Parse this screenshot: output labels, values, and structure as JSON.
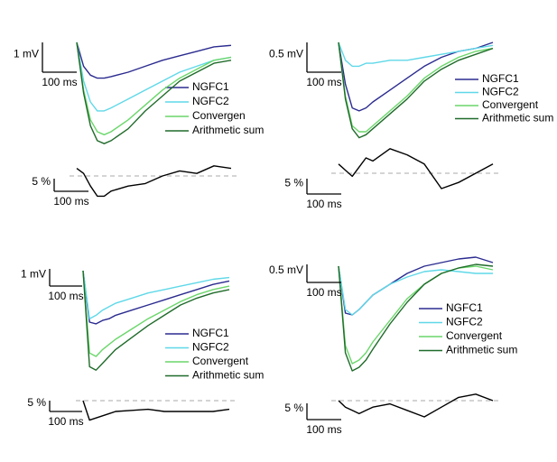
{
  "chart_data": [
    {
      "type": "line",
      "x": [
        0,
        20,
        40,
        60,
        80,
        100,
        150,
        200,
        250,
        300,
        350,
        400,
        450
      ],
      "series": [
        {
          "name": "NGFC1",
          "color": "#2b2b90",
          "values": [
            0,
            -0.8,
            -1.1,
            -1.2,
            -1.2,
            -1.15,
            -1.0,
            -0.8,
            -0.6,
            -0.45,
            -0.3,
            -0.15,
            -0.1
          ]
        },
        {
          "name": "NGFC2",
          "color": "#5fd8e8",
          "values": [
            0,
            -1.3,
            -2.0,
            -2.3,
            -2.3,
            -2.2,
            -1.9,
            -1.6,
            -1.3,
            -1.0,
            -0.8,
            -0.6,
            -0.5
          ]
        },
        {
          "name": "Convergen",
          "color": "#6ad66a",
          "values": [
            0,
            -1.6,
            -2.6,
            -3.0,
            -3.1,
            -3.0,
            -2.6,
            -2.1,
            -1.6,
            -1.2,
            -0.9,
            -0.6,
            -0.5
          ]
        },
        {
          "name": "Arithmetic sum",
          "color": "#1f6b2a",
          "values": [
            0,
            -1.7,
            -2.8,
            -3.3,
            -3.4,
            -3.3,
            -2.9,
            -2.3,
            -1.8,
            -1.3,
            -1.0,
            -0.7,
            -0.6
          ]
        }
      ],
      "scale_bars": {
        "y": {
          "value": 1,
          "label": "1 mV"
        },
        "x": {
          "value": 100,
          "label": "100 ms"
        }
      },
      "difference": {
        "values": [
          3,
          1,
          -4,
          -8,
          -8,
          -6,
          -4,
          -3,
          0,
          2,
          1,
          4,
          3
        ],
        "scale_bars": {
          "y": {
            "value": 5,
            "label": "5 %"
          },
          "x": {
            "value": 100,
            "label": "100 ms"
          }
        }
      }
    },
    {
      "type": "line",
      "x": [
        0,
        20,
        40,
        60,
        80,
        100,
        150,
        200,
        250,
        300,
        350,
        400,
        450
      ],
      "series": [
        {
          "name": "NGFC1",
          "color": "#2b2b90",
          "values": [
            0,
            -0.7,
            -1.1,
            -1.15,
            -1.1,
            -1.0,
            -0.8,
            -0.6,
            -0.4,
            -0.25,
            -0.15,
            -0.1,
            0
          ]
        },
        {
          "name": "NGFC2",
          "color": "#5fd8e8",
          "values": [
            0,
            -0.3,
            -0.4,
            -0.4,
            -0.35,
            -0.35,
            -0.3,
            -0.3,
            -0.25,
            -0.2,
            -0.15,
            -0.1,
            -0.05
          ]
        },
        {
          "name": "Convergent",
          "color": "#6ad66a",
          "values": [
            0,
            -0.9,
            -1.4,
            -1.5,
            -1.5,
            -1.4,
            -1.15,
            -0.9,
            -0.6,
            -0.4,
            -0.25,
            -0.15,
            -0.1
          ]
        },
        {
          "name": "Arithmetic sum",
          "color": "#1f6b2a",
          "values": [
            0,
            -0.95,
            -1.45,
            -1.6,
            -1.55,
            -1.45,
            -1.2,
            -0.95,
            -0.65,
            -0.45,
            -0.3,
            -0.2,
            -0.1
          ]
        }
      ],
      "scale_bars": {
        "y": {
          "value": 0.5,
          "label": "0.5 mV"
        },
        "x": {
          "value": 100,
          "label": "100 ms"
        }
      },
      "difference": {
        "values": [
          3,
          1,
          -1,
          2,
          5,
          4,
          8,
          6,
          3,
          -5,
          -3,
          0,
          3
        ],
        "scale_bars": {
          "y": {
            "value": 5,
            "label": "5 %"
          },
          "x": {
            "value": 100,
            "label": "100 ms"
          }
        }
      }
    },
    {
      "type": "line",
      "x": [
        0,
        20,
        40,
        60,
        80,
        100,
        150,
        200,
        250,
        300,
        350,
        400,
        450
      ],
      "series": [
        {
          "name": "NGFC1",
          "color": "#2b2b90",
          "values": [
            0,
            -3.0,
            -3.1,
            -2.9,
            -2.8,
            -2.6,
            -2.3,
            -2.0,
            -1.7,
            -1.4,
            -1.1,
            -0.8,
            -0.6
          ]
        },
        {
          "name": "NGFC2",
          "color": "#5fd8e8",
          "values": [
            0,
            -2.8,
            -2.6,
            -2.3,
            -2.1,
            -1.9,
            -1.6,
            -1.3,
            -1.1,
            -0.9,
            -0.7,
            -0.5,
            -0.4
          ]
        },
        {
          "name": "Convergent",
          "color": "#6ad66a",
          "values": [
            0,
            -4.8,
            -5.0,
            -4.6,
            -4.3,
            -4.0,
            -3.4,
            -2.8,
            -2.3,
            -1.8,
            -1.4,
            -1.1,
            -0.9
          ]
        },
        {
          "name": "Arithmetic sum",
          "color": "#1f6b2a",
          "values": [
            0,
            -5.6,
            -5.8,
            -5.4,
            -5.0,
            -4.6,
            -3.9,
            -3.2,
            -2.6,
            -2.0,
            -1.6,
            -1.3,
            -1.1
          ]
        }
      ],
      "scale_bars": {
        "y": {
          "value": 1,
          "label": "1 mV"
        },
        "x": {
          "value": 100,
          "label": "100 ms"
        }
      },
      "difference": {
        "values": [
          0,
          -9,
          -8,
          -7,
          -6,
          -5,
          -4.5,
          -4,
          -5,
          -5,
          -5,
          -5,
          -4
        ],
        "scale_bars": {
          "y": {
            "value": 5,
            "label": "5 %"
          },
          "x": {
            "value": 100,
            "label": "100 ms"
          }
        }
      }
    },
    {
      "type": "line",
      "x": [
        0,
        20,
        40,
        60,
        80,
        100,
        150,
        200,
        250,
        300,
        350,
        400,
        450
      ],
      "series": [
        {
          "name": "NGFC1",
          "color": "#2b2b90",
          "values": [
            0,
            -1.3,
            -1.35,
            -1.2,
            -1.0,
            -0.8,
            -0.5,
            -0.2,
            0,
            0.1,
            0.2,
            0.25,
            0.1
          ]
        },
        {
          "name": "NGFC2",
          "color": "#5fd8e8",
          "values": [
            0,
            -1.2,
            -1.35,
            -1.2,
            -1.0,
            -0.8,
            -0.5,
            -0.3,
            -0.15,
            -0.1,
            -0.15,
            -0.2,
            -0.2
          ]
        },
        {
          "name": "Convergent",
          "color": "#6ad66a",
          "values": [
            0,
            -2.2,
            -2.7,
            -2.6,
            -2.4,
            -2.1,
            -1.5,
            -0.9,
            -0.5,
            -0.2,
            -0.05,
            0,
            -0.1
          ]
        },
        {
          "name": "Arithmetic sum",
          "color": "#1f6b2a",
          "values": [
            0,
            -2.4,
            -2.9,
            -2.8,
            -2.6,
            -2.3,
            -1.6,
            -1.0,
            -0.5,
            -0.2,
            -0.05,
            0.05,
            0
          ]
        }
      ],
      "scale_bars": {
        "y": {
          "value": 0.5,
          "label": "0.5 mV"
        },
        "x": {
          "value": 100,
          "label": "100 ms"
        }
      },
      "difference": {
        "values": [
          0,
          -2,
          -3,
          -4,
          -3,
          -2,
          -1,
          -3,
          -5,
          -2,
          1,
          2,
          0
        ],
        "scale_bars": {
          "y": {
            "value": 5,
            "label": "5 %"
          },
          "x": {
            "value": 100,
            "label": "100 ms"
          }
        }
      }
    }
  ]
}
